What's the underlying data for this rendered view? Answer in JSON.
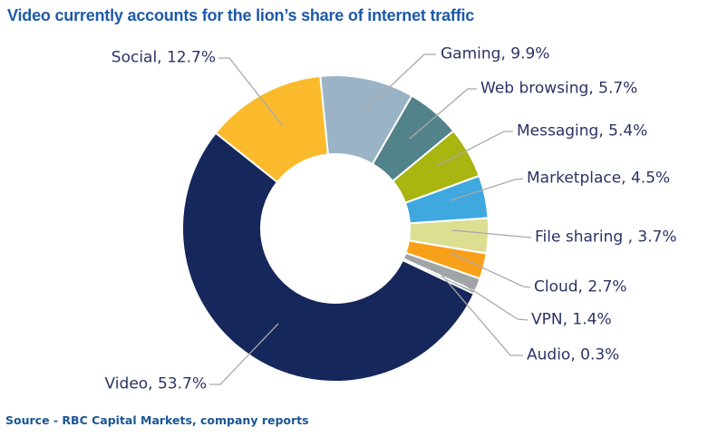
{
  "title": "Video currently accounts for the lion’s share of internet traffic",
  "source": "Source - RBC Capital Markets, company reports",
  "colors": {
    "title_text": "#1E5AA8",
    "label_text": "#2B3366",
    "source_text": "#1B5693",
    "leader_line": "#A9A9A9",
    "background": "#FFFFFF"
  },
  "chart_data": {
    "type": "pie",
    "subtype": "donut",
    "title": "Video currently accounts for the lion’s share of internet traffic",
    "legend_position": "callout-labels",
    "start_angle_deg": -5.7,
    "clockwise": true,
    "units": "percent",
    "categories": [
      "Gaming",
      "Web browsing",
      "Messaging",
      "Marketplace",
      "File sharing",
      "Cloud",
      "VPN",
      "Audio",
      "Video",
      "Social"
    ],
    "values": [
      9.9,
      5.7,
      5.4,
      4.5,
      3.7,
      2.7,
      1.4,
      0.3,
      53.7,
      12.7
    ],
    "slices": [
      {
        "label": "Gaming",
        "value": 9.9,
        "callout": "Gaming, 9.9%",
        "color": "#9AB3C6"
      },
      {
        "label": "Web browsing",
        "value": 5.7,
        "callout": "Web browsing, 5.7%",
        "color": "#52828A"
      },
      {
        "label": "Messaging",
        "value": 5.4,
        "callout": "Messaging, 5.4%",
        "color": "#A9B511"
      },
      {
        "label": "Marketplace",
        "value": 4.5,
        "callout": "Marketplace, 4.5%",
        "color": "#3FA8DF"
      },
      {
        "label": "File sharing",
        "value": 3.7,
        "callout": "File sharing , 3.7%",
        "color": "#DCDE92"
      },
      {
        "label": "Cloud",
        "value": 2.7,
        "callout": "Cloud, 2.7%",
        "color": "#F9A01B"
      },
      {
        "label": "VPN",
        "value": 1.4,
        "callout": "VPN, 1.4%",
        "color": "#A0A4A7"
      },
      {
        "label": "Audio",
        "value": 0.3,
        "callout": "Audio, 0.3%",
        "color": "#6E7276"
      },
      {
        "label": "Video",
        "value": 53.7,
        "callout": "Video, 53.7%",
        "color": "#16275C"
      },
      {
        "label": "Social",
        "value": 12.7,
        "callout": "Social, 12.7%",
        "color": "#FBBA2B"
      }
    ]
  }
}
